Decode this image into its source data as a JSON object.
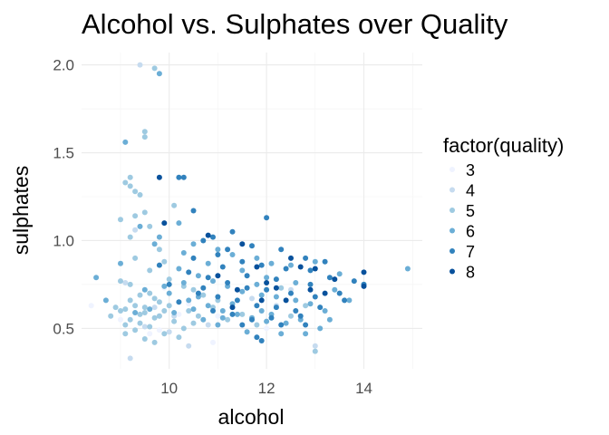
{
  "chart_data": {
    "type": "scatter",
    "title": "Alcohol vs. Sulphates over Quality",
    "xlabel": "alcohol",
    "ylabel": "sulphates",
    "xlim": [
      8.2,
      15.2
    ],
    "ylim": [
      0.27,
      2.07
    ],
    "x_ticks": [
      10,
      12,
      14
    ],
    "x_tick_labels": [
      "10",
      "12",
      "14"
    ],
    "y_ticks": [
      0.5,
      1.0,
      1.5,
      2.0
    ],
    "y_tick_labels": [
      "0.5",
      "1.0",
      "1.5",
      "2.0"
    ],
    "grid": true,
    "legend": {
      "title": "factor(quality)",
      "position": "right",
      "entries": [
        "3",
        "4",
        "5",
        "6",
        "7",
        "8"
      ]
    },
    "colors": {
      "3": "#eff3ff",
      "4": "#c6dbef",
      "5": "#9ecae1",
      "6": "#6baed6",
      "7": "#3182bd",
      "8": "#08519c"
    },
    "series": [
      {
        "name": "3",
        "points": [
          [
            8.4,
            0.63
          ],
          [
            9.0,
            0.55
          ],
          [
            9.8,
            0.49
          ],
          [
            10.2,
            0.58
          ],
          [
            11.0,
            0.57
          ],
          [
            9.6,
            0.47
          ],
          [
            10.9,
            0.42
          ],
          [
            10.4,
            0.64
          ],
          [
            9.9,
            0.73
          ],
          [
            12.0,
            0.5
          ]
        ]
      },
      {
        "name": "4",
        "points": [
          [
            9.4,
            2.0
          ],
          [
            9.2,
            0.33
          ],
          [
            9.5,
            0.51
          ],
          [
            10.0,
            0.48
          ],
          [
            11.3,
            0.62
          ],
          [
            9.1,
            0.76
          ],
          [
            10.8,
            0.52
          ],
          [
            9.8,
            0.57
          ],
          [
            12.2,
            0.63
          ],
          [
            9.3,
            1.06
          ],
          [
            10.4,
            0.4
          ],
          [
            13.0,
            0.4
          ],
          [
            10.1,
            0.57
          ],
          [
            9.7,
            0.62
          ],
          [
            11.7,
            0.67
          ],
          [
            12.5,
            0.72
          ]
        ]
      },
      {
        "name": "5",
        "points": [
          [
            9.7,
            1.98
          ],
          [
            9.5,
            1.62
          ],
          [
            9.5,
            1.59
          ],
          [
            9.1,
            1.33
          ],
          [
            9.2,
            1.31
          ],
          [
            9.3,
            1.28
          ],
          [
            9.4,
            1.26
          ],
          [
            9.2,
            1.36
          ],
          [
            10.1,
            1.2
          ],
          [
            9.0,
            1.12
          ],
          [
            9.3,
            1.14
          ],
          [
            9.5,
            1.16
          ],
          [
            9.6,
            1.08
          ],
          [
            9.2,
            1.02
          ],
          [
            9.8,
            0.95
          ],
          [
            9.3,
            0.9
          ],
          [
            9.0,
            0.77
          ],
          [
            9.6,
            0.83
          ],
          [
            9.9,
            0.88
          ],
          [
            10.3,
            0.74
          ],
          [
            9.4,
            0.69
          ],
          [
            9.7,
            0.67
          ],
          [
            10.0,
            0.63
          ],
          [
            9.1,
            0.61
          ],
          [
            9.5,
            0.59
          ],
          [
            9.8,
            0.57
          ],
          [
            9.2,
            0.55
          ],
          [
            10.5,
            0.53
          ],
          [
            9.6,
            0.51
          ],
          [
            9.3,
            0.49
          ],
          [
            9.9,
            0.47
          ],
          [
            10.2,
            0.45
          ],
          [
            9.4,
            0.58
          ],
          [
            9.0,
            0.6
          ],
          [
            9.7,
            0.56
          ],
          [
            10.1,
            0.54
          ],
          [
            9.5,
            0.62
          ],
          [
            9.8,
            0.65
          ],
          [
            10.4,
            0.6
          ],
          [
            9.6,
            0.7
          ],
          [
            9.2,
            0.66
          ],
          [
            10.6,
            0.57
          ],
          [
            11.2,
            0.55
          ],
          [
            10.9,
            0.62
          ],
          [
            9.4,
            0.53
          ],
          [
            9.9,
            0.6
          ],
          [
            11.0,
            0.66
          ],
          [
            10.3,
            0.5
          ],
          [
            9.1,
            0.52
          ],
          [
            9.3,
            0.63
          ],
          [
            8.8,
            0.57
          ],
          [
            8.9,
            0.62
          ],
          [
            12.8,
            0.63
          ],
          [
            13.0,
            0.37
          ],
          [
            12.3,
            0.73
          ],
          [
            11.5,
            0.58
          ],
          [
            10.7,
            0.69
          ],
          [
            9.5,
            0.44
          ],
          [
            9.1,
            0.47
          ],
          [
            9.7,
            0.42
          ],
          [
            9.2,
            0.75
          ],
          [
            10.0,
            0.78
          ],
          [
            10.5,
            0.72
          ],
          [
            11.8,
            0.52
          ],
          [
            12.5,
            0.57
          ]
        ]
      },
      {
        "name": "6",
        "points": [
          [
            9.8,
            1.95
          ],
          [
            9.1,
            1.56
          ],
          [
            10.2,
            1.1
          ],
          [
            9.0,
            0.87
          ],
          [
            8.5,
            0.79
          ],
          [
            8.7,
            0.66
          ],
          [
            9.4,
            1.08
          ],
          [
            9.8,
            1.02
          ],
          [
            10.5,
            0.98
          ],
          [
            11.0,
            0.95
          ],
          [
            11.3,
            0.92
          ],
          [
            11.8,
            0.9
          ],
          [
            12.1,
            0.87
          ],
          [
            12.5,
            0.86
          ],
          [
            13.0,
            0.88
          ],
          [
            13.5,
            0.81
          ],
          [
            13.7,
            0.66
          ],
          [
            14.0,
            0.75
          ],
          [
            14.9,
            0.84
          ],
          [
            10.2,
            0.84
          ],
          [
            10.6,
            0.8
          ],
          [
            10.9,
            0.77
          ],
          [
            11.2,
            0.74
          ],
          [
            11.5,
            0.71
          ],
          [
            11.9,
            0.69
          ],
          [
            12.2,
            0.68
          ],
          [
            12.6,
            0.66
          ],
          [
            12.9,
            0.64
          ],
          [
            13.2,
            0.6
          ],
          [
            10.0,
            0.7
          ],
          [
            10.4,
            0.66
          ],
          [
            10.8,
            0.63
          ],
          [
            11.1,
            0.6
          ],
          [
            11.4,
            0.58
          ],
          [
            11.7,
            0.56
          ],
          [
            12.0,
            0.54
          ],
          [
            12.4,
            0.53
          ],
          [
            12.7,
            0.55
          ],
          [
            13.1,
            0.5
          ],
          [
            9.5,
            0.72
          ],
          [
            9.9,
            0.74
          ],
          [
            10.3,
            0.76
          ],
          [
            10.7,
            0.55
          ],
          [
            11.6,
            0.48
          ],
          [
            12.3,
            0.47
          ],
          [
            12.8,
            0.47
          ],
          [
            11.0,
            0.52
          ],
          [
            10.1,
            0.59
          ],
          [
            10.5,
            0.61
          ],
          [
            9.3,
            0.59
          ],
          [
            9.6,
            0.61
          ],
          [
            11.3,
            0.64
          ],
          [
            11.9,
            0.6
          ],
          [
            12.6,
            0.76
          ],
          [
            13.4,
            0.72
          ],
          [
            10.8,
            0.87
          ],
          [
            11.5,
            0.83
          ],
          [
            12.0,
            0.79
          ],
          [
            10.3,
            0.93
          ],
          [
            9.7,
            0.98
          ],
          [
            11.1,
            0.56
          ],
          [
            12.1,
            0.58
          ],
          [
            13.3,
            0.55
          ],
          [
            10.6,
            0.68
          ],
          [
            11.8,
            0.75
          ]
        ]
      },
      {
        "name": "7",
        "points": [
          [
            10.3,
            1.36
          ],
          [
            10.2,
            1.36
          ],
          [
            10.5,
            1.17
          ],
          [
            10.9,
            1.02
          ],
          [
            12.0,
            1.13
          ],
          [
            11.3,
            1.05
          ],
          [
            10.7,
            1.0
          ],
          [
            11.7,
            0.97
          ],
          [
            11.0,
            0.92
          ],
          [
            12.3,
            0.95
          ],
          [
            12.8,
            0.9
          ],
          [
            13.2,
            0.88
          ],
          [
            11.5,
            0.88
          ],
          [
            11.9,
            0.86
          ],
          [
            12.4,
            0.84
          ],
          [
            12.9,
            0.83
          ],
          [
            13.3,
            0.79
          ],
          [
            13.8,
            0.77
          ],
          [
            14.0,
            0.75
          ],
          [
            10.4,
            0.82
          ],
          [
            10.8,
            0.79
          ],
          [
            11.2,
            0.76
          ],
          [
            11.6,
            0.73
          ],
          [
            12.0,
            0.72
          ],
          [
            12.5,
            0.7
          ],
          [
            13.0,
            0.68
          ],
          [
            13.5,
            0.7
          ],
          [
            10.6,
            0.7
          ],
          [
            11.0,
            0.68
          ],
          [
            11.4,
            0.66
          ],
          [
            11.8,
            0.63
          ],
          [
            12.2,
            0.62
          ],
          [
            12.6,
            0.6
          ],
          [
            13.1,
            0.62
          ],
          [
            10.2,
            0.65
          ],
          [
            10.9,
            0.6
          ],
          [
            11.3,
            0.58
          ],
          [
            11.7,
            0.55
          ],
          [
            12.1,
            0.56
          ],
          [
            12.7,
            0.57
          ],
          [
            11.5,
            0.52
          ],
          [
            12.3,
            0.52
          ],
          [
            11.8,
            0.45
          ],
          [
            11.9,
            0.43
          ],
          [
            12.8,
            0.52
          ],
          [
            10.0,
            0.75
          ],
          [
            9.8,
            0.86
          ],
          [
            10.5,
            0.9
          ],
          [
            11.1,
            0.85
          ],
          [
            12.9,
            0.75
          ],
          [
            13.6,
            0.66
          ],
          [
            11.2,
            0.95
          ],
          [
            12.2,
            0.78
          ],
          [
            10.7,
            0.73
          ],
          [
            11.6,
            0.8
          ]
        ]
      },
      {
        "name": "8",
        "points": [
          [
            9.8,
            1.36
          ],
          [
            9.9,
            1.1
          ],
          [
            10.8,
            1.03
          ],
          [
            11.5,
            0.98
          ],
          [
            12.5,
            0.9
          ],
          [
            12.7,
            0.85
          ],
          [
            13.0,
            0.84
          ],
          [
            13.4,
            0.78
          ],
          [
            14.0,
            0.82
          ],
          [
            12.0,
            0.76
          ],
          [
            11.9,
            0.66
          ],
          [
            12.2,
            0.73
          ],
          [
            11.4,
            0.72
          ],
          [
            11.0,
            0.8
          ],
          [
            12.4,
            0.66
          ],
          [
            11.8,
            0.85
          ],
          [
            13.2,
            0.7
          ],
          [
            12.9,
            0.72
          ],
          [
            11.3,
            0.62
          ],
          [
            14.0,
            0.74
          ]
        ]
      }
    ]
  }
}
